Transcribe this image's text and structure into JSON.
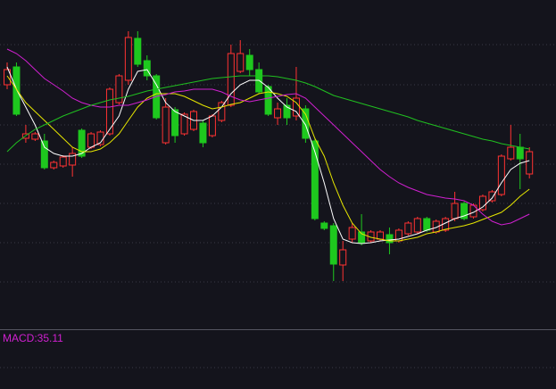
{
  "chart_data": {
    "type": "candlestick",
    "ylim": [
      0,
      360
    ],
    "up_color": "#ff3232",
    "down_color": "#1ec81e",
    "open": [
      265,
      285,
      205,
      204,
      202,
      172,
      174,
      175,
      214,
      195,
      198,
      210,
      245,
      270,
      317,
      292,
      275,
      200,
      237,
      210,
      215,
      222,
      208,
      225,
      242,
      280,
      298,
      282,
      263,
      228,
      242,
      230,
      238,
      202,
      110,
      107,
      63,
      92,
      100,
      90,
      92,
      97,
      90,
      98,
      100,
      115,
      100,
      102,
      115,
      132,
      117,
      125,
      135,
      142,
      182,
      195,
      165
    ],
    "high": [
      290,
      290,
      220,
      212,
      210,
      180,
      186,
      195,
      216,
      212,
      214,
      262,
      277,
      325,
      325,
      298,
      277,
      250,
      240,
      234,
      237,
      225,
      232,
      247,
      310,
      315,
      305,
      290,
      265,
      245,
      250,
      285,
      242,
      204,
      112,
      110,
      90,
      110,
      120,
      102,
      102,
      105,
      104,
      112,
      117,
      117,
      114,
      117,
      145,
      134,
      132,
      142,
      147,
      187,
      220,
      210,
      195
    ],
    "low": [
      260,
      230,
      200,
      202,
      170,
      170,
      172,
      162,
      183,
      193,
      196,
      208,
      243,
      265,
      285,
      270,
      226,
      198,
      200,
      208,
      213,
      195,
      206,
      223,
      240,
      278,
      275,
      255,
      230,
      220,
      220,
      225,
      200,
      113,
      102,
      45,
      45,
      88,
      85,
      88,
      90,
      75,
      88,
      96,
      98,
      100,
      98,
      100,
      112,
      113,
      115,
      123,
      133,
      140,
      180,
      148,
      160
    ],
    "close": [
      282,
      232,
      210,
      210,
      172,
      178,
      184,
      188,
      185,
      210,
      212,
      260,
      275,
      318,
      288,
      275,
      228,
      240,
      208,
      232,
      235,
      200,
      230,
      245,
      300,
      300,
      282,
      257,
      232,
      238,
      228,
      250,
      205,
      115,
      104,
      64,
      80,
      105,
      88,
      100,
      100,
      88,
      102,
      110,
      115,
      102,
      112,
      115,
      132,
      115,
      130,
      140,
      145,
      185,
      195,
      182,
      190
    ],
    "series": [
      {
        "color": "#ffffff",
        "values": [
          285,
          260,
          240,
          220,
          195,
          188,
          185,
          185,
          188,
          195,
          200,
          215,
          230,
          260,
          280,
          282,
          265,
          245,
          235,
          230,
          225,
          225,
          230,
          240,
          255,
          265,
          270,
          270,
          262,
          250,
          240,
          235,
          220,
          190,
          155,
          115,
          92,
          88,
          87,
          88,
          90,
          91,
          92,
          95,
          98,
          102,
          105,
          110,
          115,
          118,
          122,
          128,
          138,
          155,
          170,
          177,
          180
        ]
      },
      {
        "color": "#e6e600",
        "values": [
          275,
          260,
          245,
          235,
          225,
          215,
          205,
          195,
          190,
          190,
          193,
          200,
          210,
          225,
          240,
          250,
          255,
          255,
          255,
          252,
          247,
          242,
          238,
          240,
          243,
          245,
          250,
          255,
          257,
          255,
          252,
          245,
          232,
          205,
          185,
          155,
          130,
          110,
          98,
          94,
          92,
          90,
          90,
          92,
          94,
          98,
          100,
          103,
          105,
          107,
          110,
          114,
          118,
          122,
          130,
          140,
          148
        ]
      },
      {
        "color": "#d020d0",
        "values": [
          305,
          300,
          292,
          282,
          272,
          265,
          258,
          250,
          245,
          242,
          240,
          240,
          242,
          242,
          245,
          248,
          252,
          254,
          257,
          258,
          260,
          260,
          260,
          257,
          252,
          248,
          246,
          248,
          250,
          252,
          254,
          255,
          250,
          240,
          230,
          220,
          210,
          200,
          190,
          180,
          170,
          162,
          155,
          150,
          146,
          142,
          140,
          138,
          137,
          135,
          130,
          120,
          112,
          108,
          110,
          115,
          120
        ]
      },
      {
        "color": "#20c020",
        "values": [
          190,
          200,
          208,
          215,
          220,
          225,
          230,
          234,
          238,
          242,
          245,
          248,
          250,
          252,
          255,
          258,
          260,
          262,
          264,
          266,
          268,
          270,
          272,
          273,
          274,
          275,
          275,
          275,
          275,
          274,
          272,
          270,
          267,
          263,
          258,
          253,
          250,
          247,
          244,
          241,
          238,
          235,
          232,
          229,
          225,
          222,
          219,
          216,
          213,
          210,
          207,
          204,
          202,
          199,
          197,
          195,
          193
        ]
      }
    ],
    "macd_label": "MACD:35.11",
    "macd_color": "#d020d0"
  }
}
